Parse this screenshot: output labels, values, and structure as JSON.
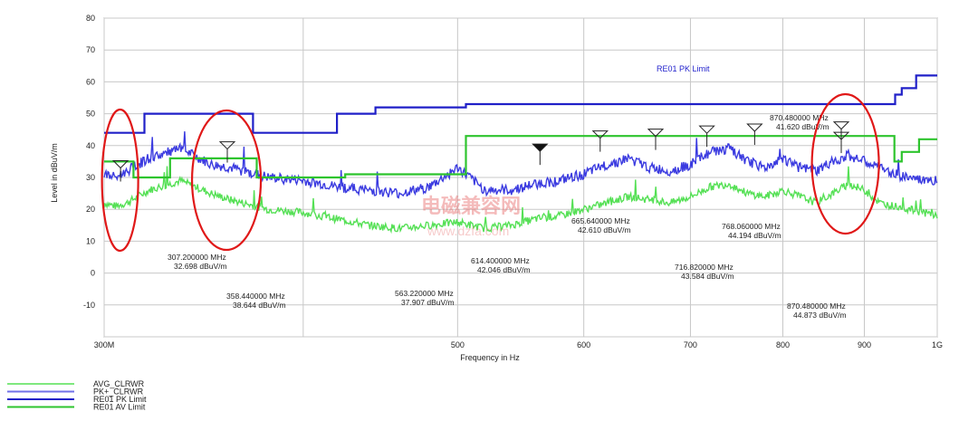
{
  "chart_data": {
    "type": "line",
    "xlabel": "Frequency in Hz",
    "ylabel": "Level in dBuV/m",
    "x_scale": "log",
    "xlim": [
      300,
      1000
    ],
    "ylim": [
      -20,
      80
    ],
    "x_ticks": [
      {
        "value": 300,
        "label": "300M"
      },
      {
        "value": 500,
        "label": "500"
      },
      {
        "value": 600,
        "label": "600"
      },
      {
        "value": 700,
        "label": "700"
      },
      {
        "value": 800,
        "label": "800"
      },
      {
        "value": 900,
        "label": "900"
      },
      {
        "value": 1000,
        "label": "1G"
      }
    ],
    "y_ticks": [
      80,
      70,
      60,
      50,
      40,
      30,
      20,
      10,
      0,
      -10
    ],
    "grid": true,
    "limit_label": "RE01 PK Limit",
    "series": [
      {
        "name": "AVG_CLRWR",
        "color": "#55e055",
        "x": [
          300,
          305,
          310,
          320,
          335,
          350,
          360,
          380,
          400,
          420,
          440,
          460,
          480,
          500,
          520,
          540,
          560,
          580,
          600,
          620,
          640,
          660,
          680,
          700,
          720,
          740,
          760,
          780,
          800,
          820,
          840,
          860,
          880,
          900,
          920,
          940,
          960,
          980,
          1000
        ],
        "y": [
          22,
          21,
          22,
          26,
          29,
          25,
          23,
          20,
          19,
          17,
          15,
          14,
          15,
          16,
          14,
          15,
          17,
          18,
          20,
          22,
          24,
          23,
          22,
          24,
          27,
          28,
          25,
          24,
          26,
          24,
          22,
          25,
          28,
          26,
          22,
          21,
          20,
          19,
          18
        ]
      },
      {
        "name": "PK+_CLRWR",
        "color": "#3b3be0",
        "x": [
          300,
          305,
          310,
          320,
          335,
          350,
          360,
          380,
          400,
          420,
          440,
          460,
          480,
          500,
          520,
          540,
          560,
          580,
          600,
          620,
          640,
          660,
          680,
          700,
          720,
          740,
          760,
          780,
          800,
          820,
          840,
          860,
          880,
          900,
          920,
          940,
          960,
          980,
          1000
        ],
        "y": [
          31,
          30,
          32,
          36,
          39,
          34,
          33,
          30,
          29,
          27,
          26,
          25,
          27,
          33,
          26,
          26,
          28,
          29,
          31,
          34,
          36,
          33,
          32,
          34,
          38,
          39,
          35,
          33,
          36,
          33,
          32,
          35,
          37,
          35,
          33,
          31,
          30,
          29,
          29
        ]
      },
      {
        "name": "RE01 PK Limit",
        "color": "#2020c8",
        "x": [
          300,
          318,
          318,
          372,
          372,
          420,
          420,
          444,
          444,
          506,
          506,
          941,
          941,
          950,
          950,
          970,
          970,
          1000
        ],
        "y": [
          44,
          44,
          50,
          50,
          44,
          44,
          50,
          50,
          52,
          52,
          53,
          53,
          56,
          56,
          58,
          58,
          62,
          62
        ]
      },
      {
        "name": "RE01 AV Limit",
        "color": "#2ec42e",
        "x": [
          300,
          313,
          313,
          330,
          330,
          374,
          374,
          425,
          425,
          506,
          506,
          940,
          940,
          950,
          950,
          974,
          974,
          1000
        ],
        "y": [
          35,
          35,
          30,
          30,
          36,
          36,
          30,
          30,
          31,
          31,
          43,
          43,
          35,
          35,
          38,
          38,
          42,
          42
        ]
      }
    ],
    "markers": [
      {
        "freq": 307.2,
        "level": 32.698,
        "label1": "307.200000 MHz",
        "label2": "32.698 dBuV/m",
        "style": "open"
      },
      {
        "freq": 358.44,
        "level": 38.644,
        "label1": "358.440000 MHz",
        "label2": "38.644 dBuV/m",
        "style": "open"
      },
      {
        "freq": 563.22,
        "level": 37.907,
        "label1": "563.220000 MHz",
        "label2": "37.907 dBuV/m",
        "style": "filled"
      },
      {
        "freq": 614.4,
        "level": 42.046,
        "label1": "614.400000 MHz",
        "label2": "42.046 dBuV/m",
        "style": "open"
      },
      {
        "freq": 665.64,
        "level": 42.61,
        "label1": "665.640000 MHz",
        "label2": "42.610 dBuV/m",
        "style": "open"
      },
      {
        "freq": 716.82,
        "level": 43.584,
        "label1": "716.820000 MHz",
        "label2": "43.584 dBuV/m",
        "style": "open"
      },
      {
        "freq": 768.06,
        "level": 44.194,
        "label1": "768.060000 MHz",
        "label2": "44.194 dBuV/m",
        "style": "open"
      },
      {
        "freq": 870.48,
        "level": 44.873,
        "label1": "870.480000 MHz",
        "label2": "44.873 dBuV/m",
        "style": "open"
      },
      {
        "freq": 870.48,
        "level": 41.62,
        "label1": "870.480000 MHz",
        "label2": "41.620 dBuV/m",
        "style": "open"
      }
    ],
    "highlight_circles_at_freq": [
      307,
      358,
      870
    ],
    "legend": [
      {
        "label": "AVG_CLRWR",
        "color": "#7ee87e"
      },
      {
        "label": "PK+_CLRWR",
        "color": "#7070e8"
      },
      {
        "label": "RE01 PK Limit",
        "color": "#2020c8"
      },
      {
        "label": "RE01 AV Limit",
        "color": "#2ec42e"
      }
    ]
  },
  "watermark": {
    "line1": "电磁兼容网",
    "line2": "www.dzfa.com"
  }
}
